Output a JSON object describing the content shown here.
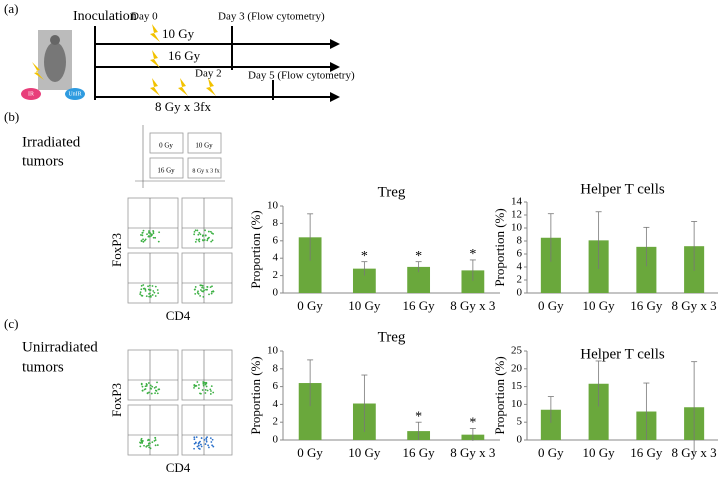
{
  "panels": {
    "a": "(a)",
    "b": "(b)",
    "c": "(c)"
  },
  "schematic": {
    "inoculation": "Inoculation",
    "day0": "Day 0",
    "day3": "Day 3 (Flow cytometry)",
    "dose1": "10 Gy",
    "dose2": "16 Gy",
    "day2": "Day 2",
    "day5": "Day 5 (Flow cytometry)",
    "dose3": "8 Gy x 3fx",
    "ir": "IR",
    "unir": "UnIR"
  },
  "section_b": {
    "label": [
      "Irradiated",
      "tumors"
    ],
    "layout": [
      "0 Gy",
      "10 Gy",
      "16 Gy",
      "8 Gy x 3 fx"
    ],
    "y_label": "FoxP3",
    "x_label": "CD4"
  },
  "section_c": {
    "label": [
      "Unirradiated",
      "tumors"
    ],
    "y_label": "FoxP3",
    "x_label": "CD4"
  },
  "chart_data": [
    {
      "type": "bar",
      "title": "Treg",
      "ylabel": "Proportion (%)",
      "categories": [
        "0 Gy",
        "10 Gy",
        "16 Gy",
        "8 Gy x 3"
      ],
      "values": [
        6.4,
        2.8,
        3.0,
        2.6
      ],
      "errors": [
        2.7,
        0.8,
        0.6,
        1.2
      ],
      "color": "#6aa83c",
      "ylim": [
        0,
        10
      ],
      "yticks": [
        0,
        2,
        4,
        6,
        8,
        10
      ],
      "annotations": [
        {
          "category": "10 Gy",
          "text": "*"
        },
        {
          "category": "16 Gy",
          "text": "*"
        },
        {
          "category": "8 Gy x 3",
          "text": "*"
        }
      ]
    },
    {
      "type": "bar",
      "title": "Helper T cells",
      "ylabel": "Proportion (%)",
      "categories": [
        "0 Gy",
        "10 Gy",
        "16 Gy",
        "8 Gy x 3"
      ],
      "values": [
        8.5,
        8.1,
        7.1,
        7.2
      ],
      "errors": [
        3.7,
        4.4,
        3.0,
        3.8
      ],
      "color": "#6aa83c",
      "ylim": [
        0,
        14
      ],
      "yticks": [
        0,
        2,
        4,
        6,
        8,
        10,
        12,
        14
      ]
    },
    {
      "type": "bar",
      "title": "Treg",
      "ylabel": "Proportion (%)",
      "categories": [
        "0 Gy",
        "10 Gy",
        "16 Gy",
        "8 Gy x 3"
      ],
      "values": [
        6.4,
        4.1,
        1.0,
        0.6
      ],
      "errors": [
        2.6,
        3.2,
        1.0,
        0.7
      ],
      "color": "#6aa83c",
      "ylim": [
        0,
        10
      ],
      "yticks": [
        0,
        2,
        4,
        6,
        8,
        10
      ],
      "annotations": [
        {
          "category": "16 Gy",
          "text": "*"
        },
        {
          "category": "8 Gy x 3",
          "text": "*"
        }
      ]
    },
    {
      "type": "bar",
      "title": "Helper T cells",
      "ylabel": "Proportion (%)",
      "categories": [
        "0 Gy",
        "10 Gy",
        "16 Gy",
        "8 Gy x 3"
      ],
      "values": [
        8.5,
        15.8,
        8.0,
        9.2
      ],
      "errors": [
        3.7,
        6.4,
        8.0,
        12.8
      ],
      "color": "#6aa83c",
      "ylim": [
        0,
        25
      ],
      "yticks": [
        0,
        5,
        10,
        15,
        20,
        25
      ]
    }
  ]
}
